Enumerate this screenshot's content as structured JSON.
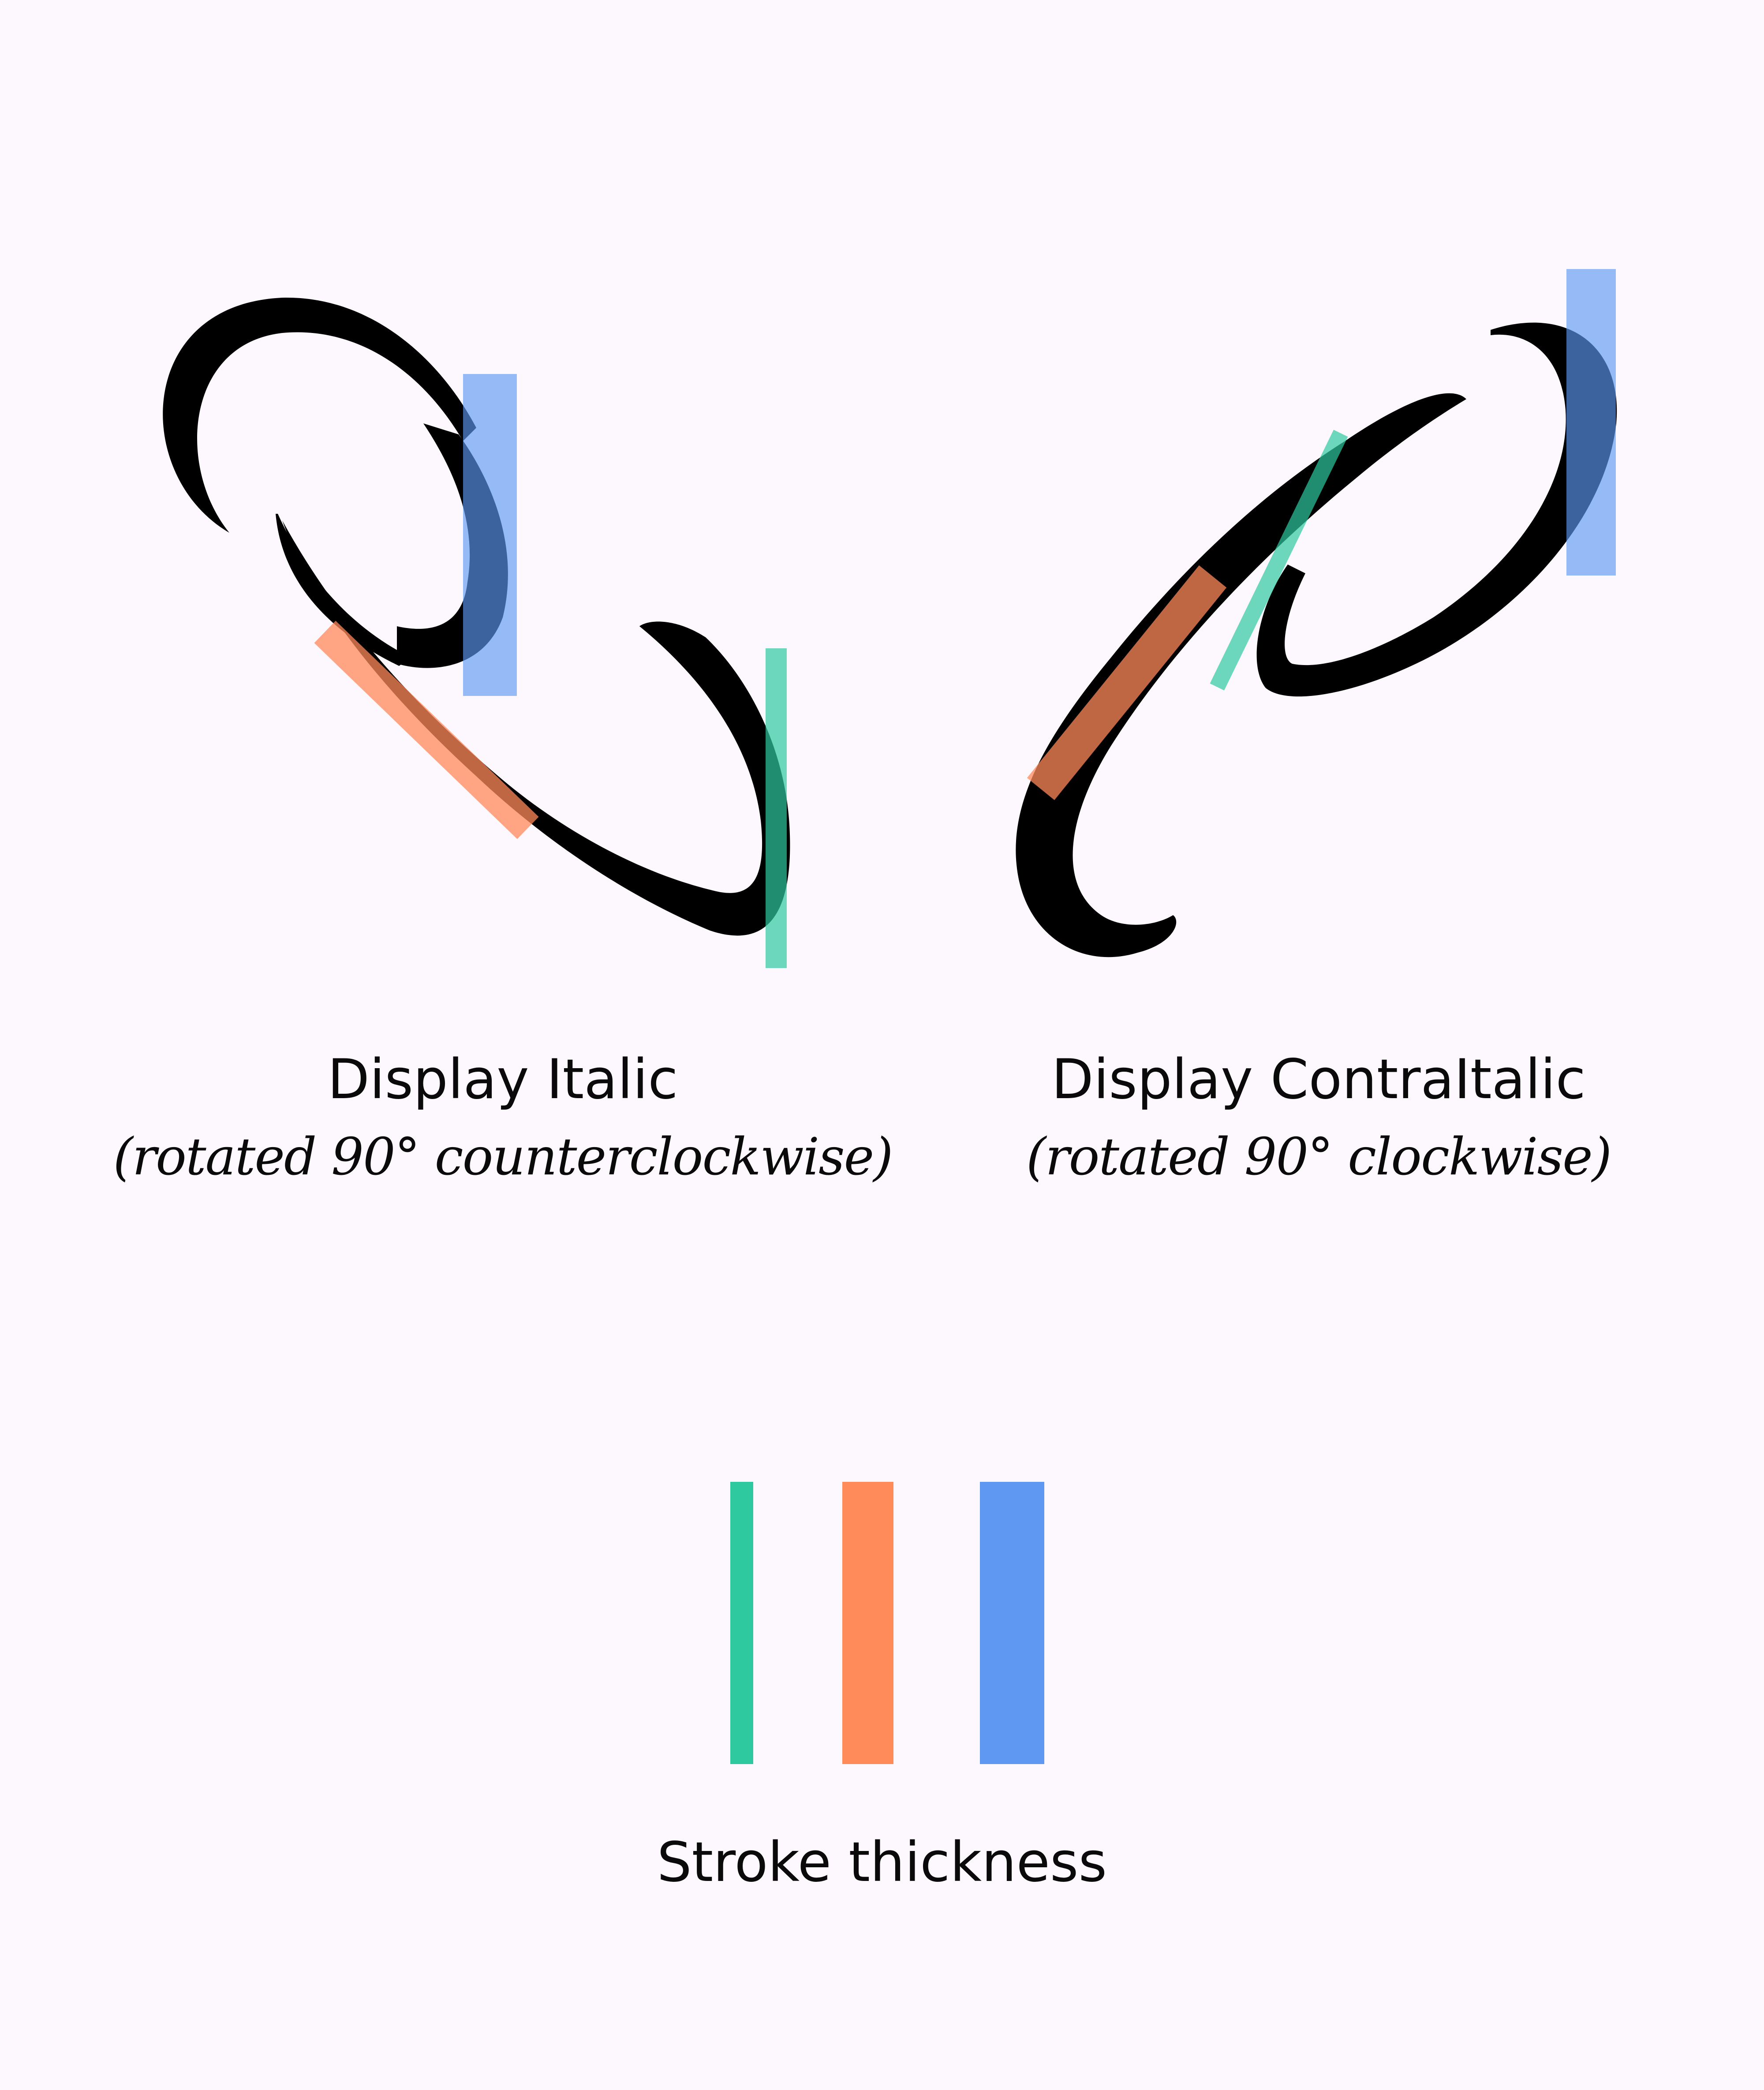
{
  "colors": {
    "background": "#fdf8fd",
    "ink": "#000000",
    "teal": "#2ec99f",
    "orange": "#ff8a5a",
    "blue": "#5e98f2"
  },
  "specimens": [
    {
      "title": "Display Italic",
      "note": "(rotated 90° counterclockwise)"
    },
    {
      "title": "Display ContraItalic",
      "note": "(rotated 90° clockwise)"
    }
  ],
  "legend": {
    "caption": "Stroke thickness",
    "swatches": [
      "teal",
      "orange",
      "blue"
    ]
  }
}
